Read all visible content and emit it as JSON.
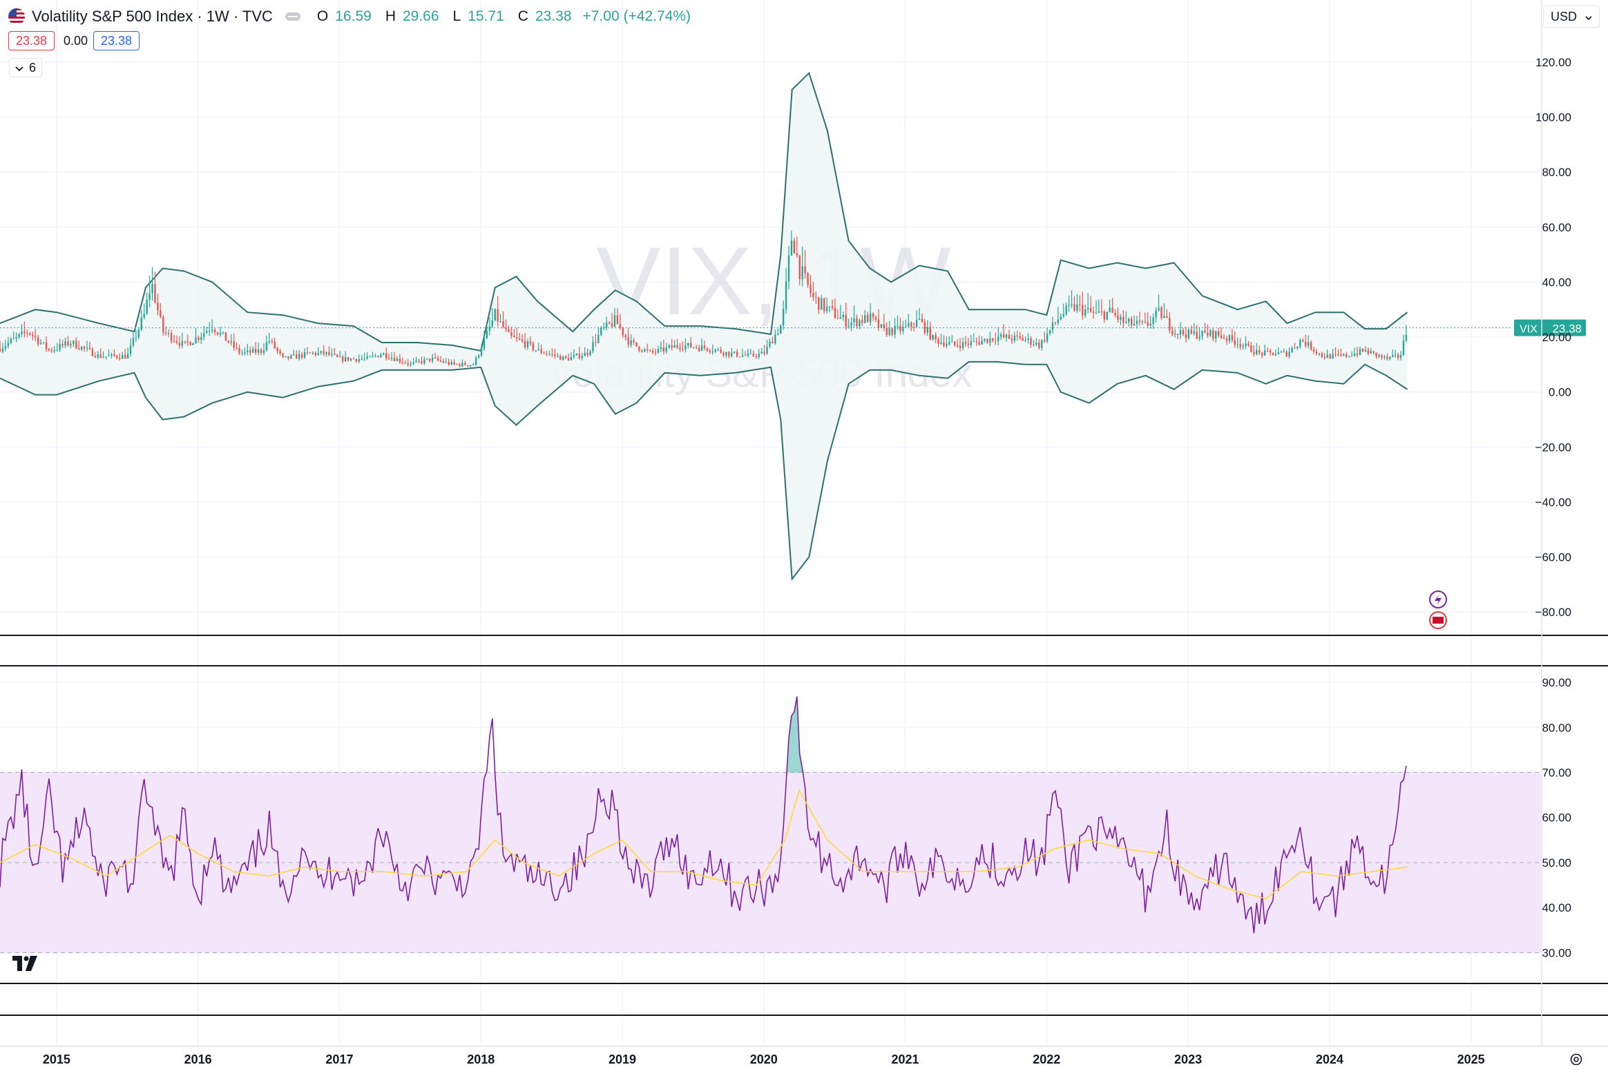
{
  "header": {
    "title": "Volatility S&P 500 Index · 1W · TVC",
    "ohlc": [
      {
        "label": "O",
        "value": "16.59"
      },
      {
        "label": "H",
        "value": "29.66"
      },
      {
        "label": "L",
        "value": "15.71"
      },
      {
        "label": "C",
        "value": "23.38"
      }
    ],
    "change": "+7.00 (+42.74%)",
    "bid": "23.38",
    "spread": "0.00",
    "ask": "23.38",
    "collapsed_count": "6",
    "currency": "USD"
  },
  "watermark": {
    "symbol": "VIX, 1W",
    "name": "Volatility S&P 500 Index"
  },
  "last_price_label": {
    "symbol": "VIX",
    "value": "23.38"
  },
  "colors": {
    "up": "#26a69a",
    "down": "#ef5350",
    "band": "#2b6f6f",
    "band_fill": "#eef6f5",
    "rsi": "#7b1fa2",
    "rsi_ma": "#fdd835",
    "rsi_zone": "#f3e6fb"
  },
  "chart_data": [
    {
      "type": "candlestick",
      "title": "Volatility S&P 500 Index",
      "interval": "1W",
      "overlay": "bollinger-like bands (upper/lower)",
      "y_axis_ticks": [
        "120.00",
        "100.00",
        "80.00",
        "60.00",
        "40.00",
        "20.00",
        "0.00",
        "−20.00",
        "−40.00",
        "−60.00",
        "−80.00"
      ],
      "ylim": [
        -88,
        125
      ],
      "x_axis_ticks": [
        "2015",
        "2016",
        "2017",
        "2018",
        "2019",
        "2020",
        "2021",
        "2022",
        "2023",
        "2024",
        "2025"
      ],
      "xlim": [
        2014.6,
        2025.5
      ],
      "close_series": [
        [
          2014.6,
          16
        ],
        [
          2014.8,
          22
        ],
        [
          2014.95,
          15
        ],
        [
          2015.1,
          18
        ],
        [
          2015.3,
          13
        ],
        [
          2015.5,
          13
        ],
        [
          2015.62,
          28
        ],
        [
          2015.67,
          40
        ],
        [
          2015.75,
          22
        ],
        [
          2015.9,
          17
        ],
        [
          2016.0,
          20
        ],
        [
          2016.1,
          24
        ],
        [
          2016.3,
          14
        ],
        [
          2016.45,
          15
        ],
        [
          2016.5,
          19
        ],
        [
          2016.6,
          12
        ],
        [
          2016.8,
          14
        ],
        [
          2016.9,
          14
        ],
        [
          2017.0,
          12
        ],
        [
          2017.2,
          12
        ],
        [
          2017.3,
          14
        ],
        [
          2017.5,
          10
        ],
        [
          2017.65,
          12
        ],
        [
          2017.8,
          10
        ],
        [
          2017.95,
          10
        ],
        [
          2018.1,
          28
        ],
        [
          2018.2,
          20
        ],
        [
          2018.3,
          18
        ],
        [
          2018.4,
          15
        ],
        [
          2018.6,
          12
        ],
        [
          2018.75,
          14
        ],
        [
          2018.85,
          22
        ],
        [
          2018.95,
          26
        ],
        [
          2019.05,
          18
        ],
        [
          2019.2,
          14
        ],
        [
          2019.4,
          17
        ],
        [
          2019.6,
          16
        ],
        [
          2019.75,
          14
        ],
        [
          2019.9,
          13
        ],
        [
          2020.0,
          14
        ],
        [
          2020.13,
          25
        ],
        [
          2020.2,
          58
        ],
        [
          2020.25,
          45
        ],
        [
          2020.35,
          34
        ],
        [
          2020.45,
          30
        ],
        [
          2020.6,
          25
        ],
        [
          2020.75,
          27
        ],
        [
          2020.85,
          22
        ],
        [
          2021.0,
          23
        ],
        [
          2021.1,
          26
        ],
        [
          2021.2,
          19
        ],
        [
          2021.35,
          17
        ],
        [
          2021.5,
          18
        ],
        [
          2021.65,
          20
        ],
        [
          2021.85,
          19
        ],
        [
          2021.95,
          17
        ],
        [
          2022.1,
          28
        ],
        [
          2022.2,
          31
        ],
        [
          2022.35,
          28
        ],
        [
          2022.45,
          29
        ],
        [
          2022.55,
          25
        ],
        [
          2022.7,
          24
        ],
        [
          2022.8,
          29
        ],
        [
          2022.9,
          22
        ],
        [
          2023.0,
          21
        ],
        [
          2023.2,
          21
        ],
        [
          2023.35,
          18
        ],
        [
          2023.5,
          14
        ],
        [
          2023.7,
          14
        ],
        [
          2023.8,
          19
        ],
        [
          2023.95,
          13
        ],
        [
          2024.1,
          13
        ],
        [
          2024.25,
          15
        ],
        [
          2024.4,
          12
        ],
        [
          2024.5,
          13
        ],
        [
          2024.55,
          23.38
        ]
      ],
      "upper_band": [
        [
          2014.6,
          25
        ],
        [
          2014.85,
          30
        ],
        [
          2015.0,
          29
        ],
        [
          2015.3,
          25
        ],
        [
          2015.55,
          22
        ],
        [
          2015.63,
          38
        ],
        [
          2015.75,
          45
        ],
        [
          2015.9,
          44
        ],
        [
          2016.1,
          40
        ],
        [
          2016.35,
          29
        ],
        [
          2016.6,
          28
        ],
        [
          2016.85,
          25
        ],
        [
          2017.1,
          24
        ],
        [
          2017.3,
          18
        ],
        [
          2017.55,
          18
        ],
        [
          2017.8,
          17
        ],
        [
          2018.0,
          15
        ],
        [
          2018.1,
          38
        ],
        [
          2018.25,
          42
        ],
        [
          2018.4,
          33
        ],
        [
          2018.65,
          22
        ],
        [
          2018.8,
          30
        ],
        [
          2018.95,
          37
        ],
        [
          2019.1,
          33
        ],
        [
          2019.3,
          24
        ],
        [
          2019.55,
          24
        ],
        [
          2019.8,
          23
        ],
        [
          2020.05,
          21
        ],
        [
          2020.12,
          50
        ],
        [
          2020.2,
          110
        ],
        [
          2020.32,
          116
        ],
        [
          2020.45,
          95
        ],
        [
          2020.6,
          55
        ],
        [
          2020.75,
          45
        ],
        [
          2020.9,
          40
        ],
        [
          2021.1,
          46
        ],
        [
          2021.3,
          44
        ],
        [
          2021.45,
          30
        ],
        [
          2021.65,
          30
        ],
        [
          2021.85,
          30
        ],
        [
          2022.0,
          28
        ],
        [
          2022.1,
          48
        ],
        [
          2022.3,
          45
        ],
        [
          2022.5,
          47
        ],
        [
          2022.7,
          45
        ],
        [
          2022.9,
          47
        ],
        [
          2023.1,
          35
        ],
        [
          2023.35,
          30
        ],
        [
          2023.55,
          33
        ],
        [
          2023.7,
          25
        ],
        [
          2023.9,
          29
        ],
        [
          2024.1,
          29
        ],
        [
          2024.25,
          23
        ],
        [
          2024.4,
          23
        ],
        [
          2024.55,
          29
        ]
      ],
      "lower_band": [
        [
          2014.6,
          5
        ],
        [
          2014.85,
          -1
        ],
        [
          2015.0,
          -1
        ],
        [
          2015.3,
          4
        ],
        [
          2015.55,
          7
        ],
        [
          2015.63,
          -2
        ],
        [
          2015.75,
          -10
        ],
        [
          2015.9,
          -9
        ],
        [
          2016.1,
          -4
        ],
        [
          2016.35,
          0
        ],
        [
          2016.6,
          -2
        ],
        [
          2016.85,
          2
        ],
        [
          2017.1,
          4
        ],
        [
          2017.3,
          8
        ],
        [
          2017.55,
          8
        ],
        [
          2017.8,
          8
        ],
        [
          2018.0,
          9
        ],
        [
          2018.1,
          -5
        ],
        [
          2018.25,
          -12
        ],
        [
          2018.4,
          -5
        ],
        [
          2018.65,
          6
        ],
        [
          2018.8,
          3
        ],
        [
          2018.95,
          -8
        ],
        [
          2019.1,
          -4
        ],
        [
          2019.3,
          7
        ],
        [
          2019.55,
          6
        ],
        [
          2019.8,
          7
        ],
        [
          2020.05,
          9
        ],
        [
          2020.12,
          -10
        ],
        [
          2020.2,
          -68
        ],
        [
          2020.32,
          -60
        ],
        [
          2020.45,
          -25
        ],
        [
          2020.6,
          3
        ],
        [
          2020.75,
          8
        ],
        [
          2020.9,
          8
        ],
        [
          2021.1,
          6
        ],
        [
          2021.3,
          5
        ],
        [
          2021.45,
          11
        ],
        [
          2021.65,
          11
        ],
        [
          2021.85,
          10
        ],
        [
          2022.0,
          10
        ],
        [
          2022.1,
          0
        ],
        [
          2022.3,
          -4
        ],
        [
          2022.5,
          3
        ],
        [
          2022.7,
          6
        ],
        [
          2022.9,
          1
        ],
        [
          2023.1,
          8
        ],
        [
          2023.35,
          7
        ],
        [
          2023.55,
          3
        ],
        [
          2023.7,
          6
        ],
        [
          2023.9,
          4
        ],
        [
          2024.1,
          3
        ],
        [
          2024.25,
          10
        ],
        [
          2024.4,
          6
        ],
        [
          2024.55,
          1
        ]
      ],
      "last_value": 23.38
    },
    {
      "type": "line",
      "indicator": "RSI with moving average",
      "y_axis_ticks": [
        "90.00",
        "80.00",
        "70.00",
        "60.00",
        "50.00",
        "40.00",
        "30.00"
      ],
      "ylim": [
        23,
        94
      ],
      "bands": {
        "upper": 70,
        "middle": 50,
        "lower": 30
      },
      "rsi": [
        [
          2014.6,
          49
        ],
        [
          2014.75,
          68
        ],
        [
          2014.85,
          46
        ],
        [
          2014.95,
          65
        ],
        [
          2015.05,
          47
        ],
        [
          2015.2,
          62
        ],
        [
          2015.3,
          45
        ],
        [
          2015.45,
          50
        ],
        [
          2015.55,
          44
        ],
        [
          2015.62,
          70
        ],
        [
          2015.7,
          55
        ],
        [
          2015.8,
          46
        ],
        [
          2015.9,
          60
        ],
        [
          2016.0,
          42
        ],
        [
          2016.1,
          55
        ],
        [
          2016.2,
          43
        ],
        [
          2016.35,
          48
        ],
        [
          2016.5,
          58
        ],
        [
          2016.6,
          42
        ],
        [
          2016.75,
          55
        ],
        [
          2016.85,
          45
        ],
        [
          2017.0,
          50
        ],
        [
          2017.15,
          44
        ],
        [
          2017.3,
          58
        ],
        [
          2017.45,
          45
        ],
        [
          2017.6,
          48
        ],
        [
          2017.75,
          45
        ],
        [
          2017.95,
          47
        ],
        [
          2018.08,
          80
        ],
        [
          2018.15,
          52
        ],
        [
          2018.3,
          48
        ],
        [
          2018.45,
          45
        ],
        [
          2018.6,
          46
        ],
        [
          2018.75,
          52
        ],
        [
          2018.85,
          67
        ],
        [
          2018.95,
          62
        ],
        [
          2019.05,
          47
        ],
        [
          2019.2,
          45
        ],
        [
          2019.35,
          57
        ],
        [
          2019.5,
          45
        ],
        [
          2019.65,
          52
        ],
        [
          2019.8,
          43
        ],
        [
          2019.95,
          44
        ],
        [
          2020.1,
          46
        ],
        [
          2020.18,
          78
        ],
        [
          2020.22,
          88
        ],
        [
          2020.3,
          60
        ],
        [
          2020.4,
          52
        ],
        [
          2020.55,
          46
        ],
        [
          2020.7,
          52
        ],
        [
          2020.85,
          44
        ],
        [
          2021.0,
          54
        ],
        [
          2021.1,
          46
        ],
        [
          2021.25,
          50
        ],
        [
          2021.4,
          46
        ],
        [
          2021.55,
          52
        ],
        [
          2021.7,
          48
        ],
        [
          2021.85,
          52
        ],
        [
          2021.97,
          50
        ],
        [
          2022.05,
          67
        ],
        [
          2022.15,
          48
        ],
        [
          2022.3,
          58
        ],
        [
          2022.45,
          54
        ],
        [
          2022.55,
          53
        ],
        [
          2022.7,
          43
        ],
        [
          2022.85,
          58
        ],
        [
          2022.95,
          44
        ],
        [
          2023.1,
          40
        ],
        [
          2023.25,
          52
        ],
        [
          2023.4,
          38
        ],
        [
          2023.5,
          37
        ],
        [
          2023.65,
          49
        ],
        [
          2023.8,
          59
        ],
        [
          2023.9,
          43
        ],
        [
          2024.05,
          42
        ],
        [
          2024.2,
          56
        ],
        [
          2024.3,
          46
        ],
        [
          2024.4,
          46
        ],
        [
          2024.48,
          59
        ],
        [
          2024.55,
          73
        ]
      ],
      "rsi_ma": [
        [
          2014.6,
          50
        ],
        [
          2014.85,
          54
        ],
        [
          2015.1,
          51
        ],
        [
          2015.35,
          47
        ],
        [
          2015.6,
          52
        ],
        [
          2015.8,
          56
        ],
        [
          2016.0,
          52
        ],
        [
          2016.25,
          48
        ],
        [
          2016.5,
          47
        ],
        [
          2016.75,
          49
        ],
        [
          2017.0,
          48
        ],
        [
          2017.3,
          48
        ],
        [
          2017.6,
          47
        ],
        [
          2017.9,
          48
        ],
        [
          2018.1,
          55
        ],
        [
          2018.3,
          50
        ],
        [
          2018.55,
          47
        ],
        [
          2018.8,
          52
        ],
        [
          2019.0,
          55
        ],
        [
          2019.2,
          48
        ],
        [
          2019.45,
          48
        ],
        [
          2019.7,
          46
        ],
        [
          2019.95,
          45
        ],
        [
          2020.15,
          55
        ],
        [
          2020.25,
          66
        ],
        [
          2020.45,
          55
        ],
        [
          2020.7,
          48
        ],
        [
          2020.95,
          48
        ],
        [
          2021.2,
          48
        ],
        [
          2021.5,
          48
        ],
        [
          2021.8,
          49
        ],
        [
          2022.05,
          53
        ],
        [
          2022.3,
          55
        ],
        [
          2022.55,
          53
        ],
        [
          2022.8,
          52
        ],
        [
          2023.05,
          47
        ],
        [
          2023.3,
          44
        ],
        [
          2023.55,
          42
        ],
        [
          2023.8,
          48
        ],
        [
          2024.05,
          47
        ],
        [
          2024.3,
          48
        ],
        [
          2024.55,
          49
        ]
      ]
    }
  ]
}
